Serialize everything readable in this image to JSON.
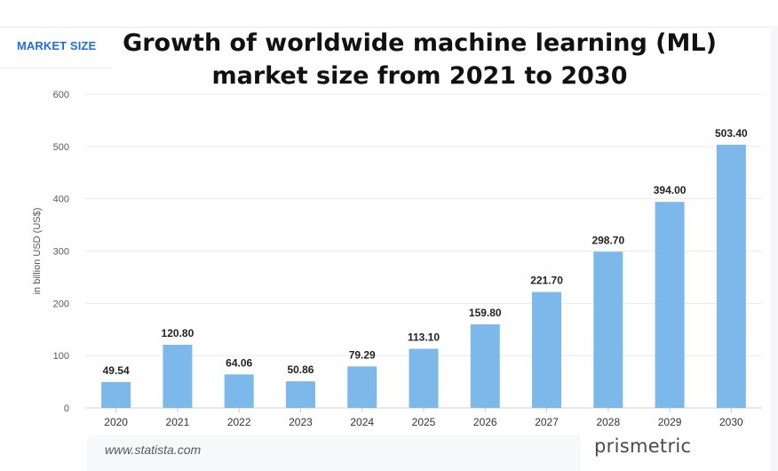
{
  "header": {
    "tab_label": "MARKET SIZE"
  },
  "footer": {
    "source": "www.statista.com",
    "brand": "prismetric"
  },
  "colors": {
    "bar": "#7cb8ea",
    "grid": "#e8eaed",
    "tab_accent": "#1e6fd9"
  },
  "chart_data": {
    "type": "bar",
    "title": "Growth of worldwide machine learning (ML) market size from 2021 to 2030",
    "title_lines": [
      "Growth of worldwide machine learning (ML)",
      "market size from 2021 to 2030"
    ],
    "xlabel": "",
    "ylabel": "in billion USD (US$)",
    "categories": [
      "2020",
      "2021",
      "2022",
      "2023",
      "2024",
      "2025",
      "2026",
      "2027",
      "2028",
      "2029",
      "2030"
    ],
    "values": [
      49.54,
      120.8,
      64.06,
      50.86,
      79.29,
      113.1,
      159.8,
      221.7,
      298.7,
      394.0,
      503.4
    ],
    "value_labels": [
      "49.54",
      "120.80",
      "64.06",
      "50.86",
      "79.29",
      "113.10",
      "159.80",
      "221.70",
      "298.70",
      "394.00",
      "503.40"
    ],
    "yticks": [
      0,
      100,
      200,
      300,
      400,
      500,
      600
    ],
    "ylim": [
      0,
      600
    ],
    "grid": true,
    "legend": "none"
  }
}
